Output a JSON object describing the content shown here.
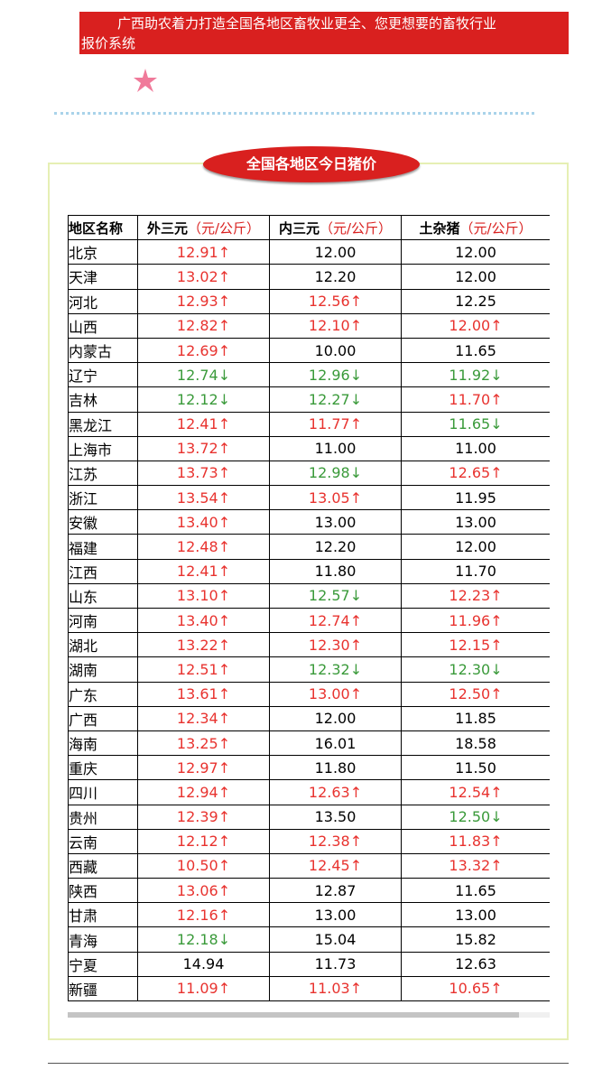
{
  "banner": {
    "text": "广西助农着力打造全国各地区畜牧业更全、您更想要的畜牧行业报价系统"
  },
  "section": {
    "title": "全国各地区今日猪价"
  },
  "table": {
    "columns": [
      {
        "name": "地区名称"
      },
      {
        "name": "外三元",
        "unit": "（元/公斤）"
      },
      {
        "name": "内三元",
        "unit": "（元/公斤）"
      },
      {
        "name": "土杂猪",
        "unit": "（元/公斤）"
      }
    ],
    "rows": [
      [
        "北京",
        "12.91↑",
        "12.00",
        "12.00"
      ],
      [
        "天津",
        "13.02↑",
        "12.20",
        "12.00"
      ],
      [
        "河北",
        "12.93↑",
        "12.56↑",
        "12.25"
      ],
      [
        "山西",
        "12.82↑",
        "12.10↑",
        "12.00↑"
      ],
      [
        "内蒙古",
        "12.69↑",
        "10.00",
        "11.65"
      ],
      [
        "辽宁",
        "12.74↓",
        "12.96↓",
        "11.92↓"
      ],
      [
        "吉林",
        "12.12↓",
        "12.27↓",
        "11.70↑"
      ],
      [
        "黑龙江",
        "12.41↑",
        "11.77↑",
        "11.65↓"
      ],
      [
        "上海市",
        "13.72↑",
        "11.00",
        "11.00"
      ],
      [
        "江苏",
        "13.73↑",
        "12.98↓",
        "12.65↑"
      ],
      [
        "浙江",
        "13.54↑",
        "13.05↑",
        "11.95"
      ],
      [
        "安徽",
        "13.40↑",
        "13.00",
        "13.00"
      ],
      [
        "福建",
        "12.48↑",
        "12.20",
        "12.00"
      ],
      [
        "江西",
        "12.41↑",
        "11.80",
        "11.70"
      ],
      [
        "山东",
        "13.10↑",
        "12.57↓",
        "12.23↑"
      ],
      [
        "河南",
        "13.40↑",
        "12.74↑",
        "11.96↑"
      ],
      [
        "湖北",
        "13.22↑",
        "12.30↑",
        "12.15↑"
      ],
      [
        "湖南",
        "12.51↑",
        "12.32↓",
        "12.30↓"
      ],
      [
        "广东",
        "13.61↑",
        "13.00↑",
        "12.50↑"
      ],
      [
        "广西",
        "12.34↑",
        "12.00",
        "11.85"
      ],
      [
        "海南",
        "13.25↑",
        "16.01",
        "18.58"
      ],
      [
        "重庆",
        "12.97↑",
        "11.80",
        "11.50"
      ],
      [
        "四川",
        "12.94↑",
        "12.63↑",
        "12.54↑"
      ],
      [
        "贵州",
        "12.39↑",
        "13.50",
        "12.50↓"
      ],
      [
        "云南",
        "12.12↑",
        "12.38↑",
        "11.83↑"
      ],
      [
        "西藏",
        "10.50↑",
        "12.45↑",
        "13.32↑"
      ],
      [
        "陕西",
        "13.06↑",
        "12.87",
        "11.65"
      ],
      [
        "甘肃",
        "12.16↑",
        "13.00",
        "13.00"
      ],
      [
        "青海",
        "12.18↓",
        "15.04",
        "15.82"
      ],
      [
        "宁夏",
        "14.94",
        "11.73",
        "12.63"
      ],
      [
        "新疆",
        "11.09↑",
        "11.03↑",
        "10.65↑"
      ]
    ]
  }
}
